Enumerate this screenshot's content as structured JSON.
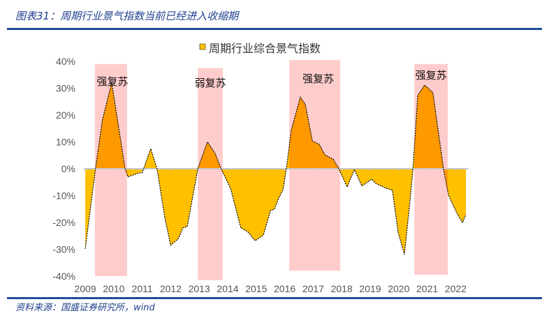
{
  "header": {
    "title": "图表31：周期行业景气指数当前已经进入收缩期"
  },
  "footer": {
    "source": "资料来源：国盛证券研究所，wind"
  },
  "colors": {
    "rule": "#1F4E9A",
    "area": "#FFC000",
    "area_highlight": "#FF9900",
    "shade": "#FFCCCC",
    "zero_line": "#C8C8C8"
  },
  "chart_data": {
    "type": "area",
    "title": "",
    "legend": {
      "label": "周期行业综合景气指数",
      "placement": "top"
    },
    "ylim": [
      -40,
      40
    ],
    "yticks": [
      40,
      30,
      20,
      10,
      0,
      -10,
      -20,
      -30,
      -40
    ],
    "ytick_labels": [
      "40%",
      "30%",
      "20%",
      "10%",
      "0%",
      "-10%",
      "-20%",
      "-30%",
      "-40%"
    ],
    "xlim": [
      2009,
      2022.4
    ],
    "xtick_labels": [
      "2009",
      "2010",
      "2011",
      "2012",
      "2013",
      "2014",
      "2015",
      "2016",
      "2017",
      "2018",
      "2019",
      "2020",
      "2021",
      "2022"
    ],
    "series": [
      {
        "x": [
          2009.0,
          2009.36,
          2009.6,
          2009.93,
          2010.4,
          2010.5,
          2010.9,
          2011.0,
          2011.3,
          2011.52,
          2011.8,
          2012.0,
          2012.27,
          2012.43,
          2012.58,
          2012.95,
          2013.29,
          2013.56,
          2013.77,
          2014.1,
          2014.46,
          2014.7,
          2014.96,
          2015.25,
          2015.5,
          2015.64,
          2015.8,
          2015.94,
          2016.06,
          2016.23,
          2016.55,
          2016.72,
          2016.97,
          2017.21,
          2017.41,
          2017.7,
          2017.9,
          2018.19,
          2018.44,
          2018.71,
          2019.05,
          2019.2,
          2019.57,
          2019.78,
          2019.98,
          2020.2,
          2020.4,
          2020.5,
          2020.67,
          2020.91,
          2021.2,
          2021.57,
          2021.75,
          2022.06,
          2022.24,
          2022.36
        ],
        "y": [
          -29.8,
          0,
          18,
          32,
          0,
          -3,
          -1.5,
          -1.5,
          7.5,
          0,
          -18.5,
          -28.5,
          -26,
          -22,
          -21.5,
          0,
          10,
          5.7,
          0,
          -7.3,
          -22,
          -23.4,
          -26.8,
          -24.7,
          -15.6,
          -15,
          -10.7,
          -7.8,
          0,
          14.3,
          26.7,
          24,
          10.4,
          9.1,
          5.2,
          3.6,
          0,
          -6.8,
          -0.3,
          -6.4,
          -3.9,
          -5.5,
          -7.3,
          -8,
          -23.7,
          -31.9,
          -11.7,
          0,
          27.3,
          31.2,
          28.3,
          0,
          -9.9,
          -16.9,
          -20,
          -17
        ]
      }
    ],
    "annotations": [
      {
        "label": "强复苏",
        "x_range": [
          2009.34,
          2010.47
        ],
        "y_range": [
          -40,
          39
        ]
      },
      {
        "label": "弱复苏",
        "x_range": [
          2012.95,
          2013.83
        ],
        "y_range": [
          -41.5,
          37.5
        ]
      },
      {
        "label": "强复苏",
        "x_range": [
          2016.16,
          2017.95
        ],
        "y_range": [
          -38,
          40.5
        ]
      },
      {
        "label": "强复苏",
        "x_range": [
          2020.55,
          2021.72
        ],
        "y_range": [
          -39.5,
          39
        ]
      }
    ]
  }
}
